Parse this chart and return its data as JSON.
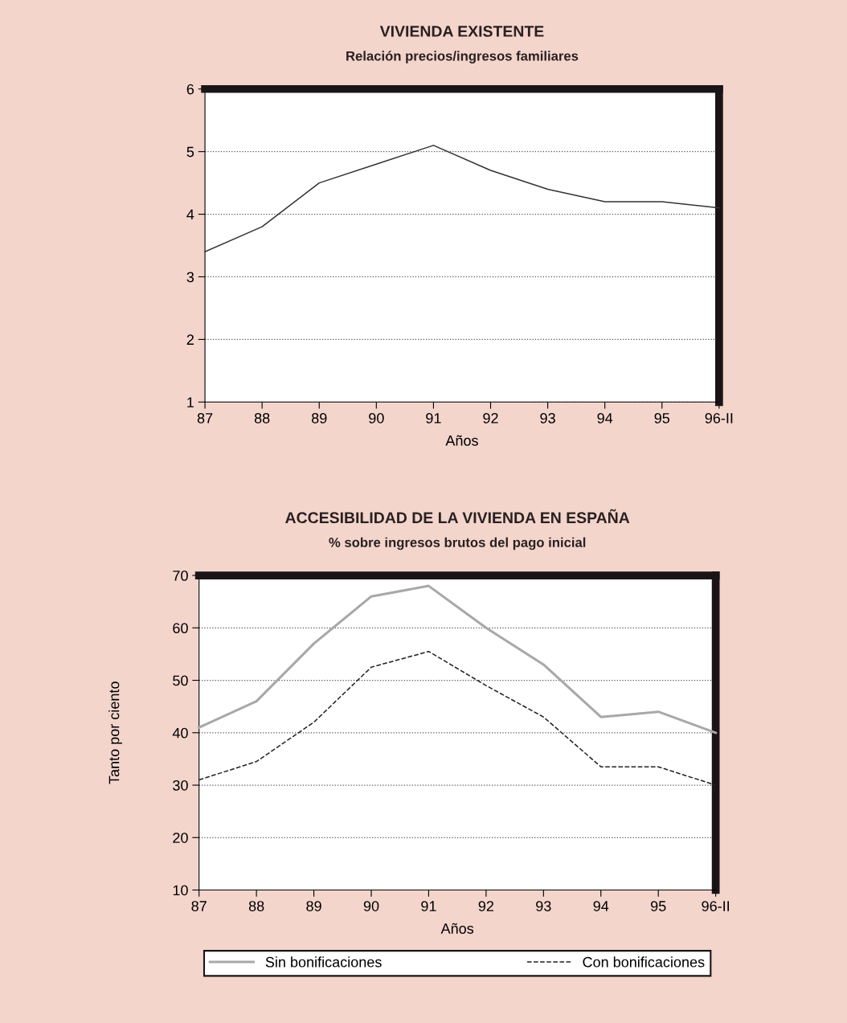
{
  "chart_data": [
    {
      "type": "line",
      "title": "VIVIENDA EXISTENTE",
      "subtitle": "Relación precios/ingresos familiares",
      "xlabel": "Años",
      "categories": [
        "87",
        "88",
        "89",
        "90",
        "91",
        "92",
        "93",
        "94",
        "95",
        "96-II"
      ],
      "series": [
        {
          "color": "#333333",
          "values": [
            3.4,
            3.8,
            4.5,
            4.8,
            5.1,
            4.7,
            4.4,
            4.2,
            4.2,
            4.1
          ]
        }
      ],
      "ylim": [
        1,
        6
      ],
      "yticks": [
        1,
        2,
        3,
        4,
        5,
        6
      ],
      "grid": "y",
      "line_style": "solid",
      "marker": "none",
      "legend": false
    },
    {
      "type": "line",
      "title": "ACCESIBILIDAD DE LA VIVIENDA EN ESPAÑA",
      "subtitle": "% sobre ingresos brutos del pago inicial",
      "xlabel": "Años",
      "ylabel": "Tanto por ciento",
      "categories": [
        "87",
        "88",
        "89",
        "90",
        "91",
        "92",
        "93",
        "94",
        "95",
        "96-II"
      ],
      "series": [
        {
          "name": "Sin bonificaciones",
          "color": "#a8a8a8",
          "line_style": "solid",
          "values": [
            41,
            46,
            57,
            66,
            68,
            60,
            53,
            43,
            44,
            40
          ]
        },
        {
          "name": "Con bonificaciones",
          "color": "#222222",
          "line_style": "dashed",
          "values": [
            31,
            34.5,
            42,
            52.5,
            55.5,
            49,
            43,
            33.5,
            33.5,
            30
          ]
        }
      ],
      "ylim": [
        10,
        70
      ],
      "yticks": [
        10,
        20,
        30,
        40,
        50,
        60,
        70
      ],
      "grid": "y",
      "marker": "none",
      "legend": "bottom"
    }
  ]
}
